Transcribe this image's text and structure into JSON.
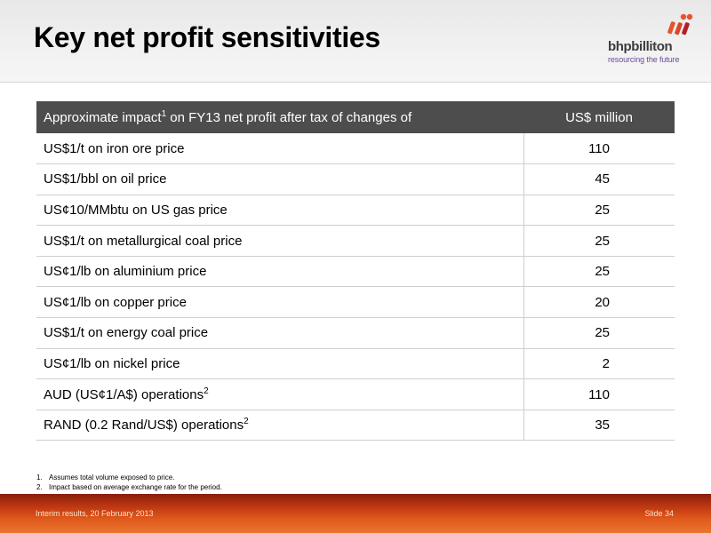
{
  "slide": {
    "title": "Key net profit sensitivities"
  },
  "logo": {
    "name": "bhpbilliton",
    "tagline": "resourcing the future",
    "colors": [
      "#e4552b",
      "#b21f2b",
      "#6a4b9a"
    ]
  },
  "table": {
    "header": {
      "label_pre": "Approximate impact",
      "label_sup": "1",
      "label_post": " on FY13 net profit after tax of changes of",
      "value_label": "US$ million"
    },
    "rows": [
      {
        "label": "US$1/t on iron ore price",
        "sup": "",
        "value": "110"
      },
      {
        "label": "US$1/bbl on oil price",
        "sup": "",
        "value": "45"
      },
      {
        "label": "US¢10/MMbtu on US gas price",
        "sup": "",
        "value": "25"
      },
      {
        "label": "US$1/t on metallurgical coal price",
        "sup": "",
        "value": "25"
      },
      {
        "label": "US¢1/lb on aluminium price",
        "sup": "",
        "value": "25"
      },
      {
        "label": "US¢1/lb on copper price",
        "sup": "",
        "value": "20"
      },
      {
        "label": "US$1/t on energy coal price",
        "sup": "",
        "value": "25"
      },
      {
        "label": "US¢1/lb on nickel price",
        "sup": "",
        "value": "2"
      },
      {
        "label": "AUD (US¢1/A$) operations",
        "sup": "2",
        "value": "110"
      },
      {
        "label": "RAND (0.2 Rand/US$) operations",
        "sup": "2",
        "value": "35"
      }
    ]
  },
  "footnotes": [
    {
      "num": "1.",
      "text": "Assumes total volume exposed to price."
    },
    {
      "num": "2.",
      "text": "Impact based on average exchange rate for the period."
    }
  ],
  "footer": {
    "left": "Interim results, 20 February 2013",
    "right": "Slide 34"
  }
}
